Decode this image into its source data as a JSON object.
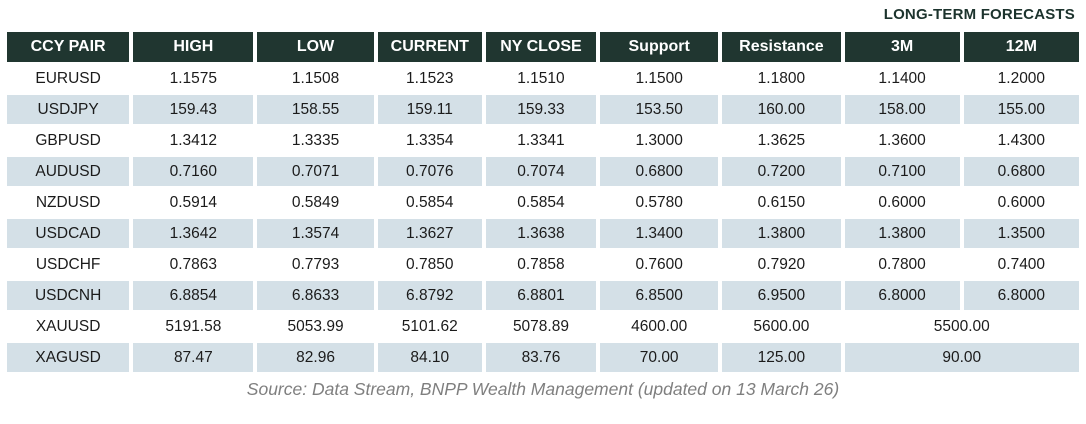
{
  "header": {
    "long_term_label": "LONG-TERM FORECASTS"
  },
  "table": {
    "columns": [
      "CCY PAIR",
      "HIGH",
      "LOW",
      "CURRENT",
      "NY CLOSE",
      "Support",
      "Resistance",
      "3M",
      "12M"
    ],
    "rows": [
      {
        "pair": "EURUSD",
        "values": [
          "1.1575",
          "1.1508",
          "1.1523",
          "1.1510",
          "1.1500",
          "1.1800"
        ],
        "forecast_3m": "1.1400",
        "forecast_12m": "1.2000"
      },
      {
        "pair": "USDJPY",
        "values": [
          "159.43",
          "158.55",
          "159.11",
          "159.33",
          "153.50",
          "160.00"
        ],
        "forecast_3m": "158.00",
        "forecast_12m": "155.00"
      },
      {
        "pair": "GBPUSD",
        "values": [
          "1.3412",
          "1.3335",
          "1.3354",
          "1.3341",
          "1.3000",
          "1.3625"
        ],
        "forecast_3m": "1.3600",
        "forecast_12m": "1.4300"
      },
      {
        "pair": "AUDUSD",
        "values": [
          "0.7160",
          "0.7071",
          "0.7076",
          "0.7074",
          "0.6800",
          "0.7200"
        ],
        "forecast_3m": "0.7100",
        "forecast_12m": "0.6800"
      },
      {
        "pair": "NZDUSD",
        "values": [
          "0.5914",
          "0.5849",
          "0.5854",
          "0.5854",
          "0.5780",
          "0.6150"
        ],
        "forecast_3m": "0.6000",
        "forecast_12m": "0.6000"
      },
      {
        "pair": "USDCAD",
        "values": [
          "1.3642",
          "1.3574",
          "1.3627",
          "1.3638",
          "1.3400",
          "1.3800"
        ],
        "forecast_3m": "1.3800",
        "forecast_12m": "1.3500"
      },
      {
        "pair": "USDCHF",
        "values": [
          "0.7863",
          "0.7793",
          "0.7850",
          "0.7858",
          "0.7600",
          "0.7920"
        ],
        "forecast_3m": "0.7800",
        "forecast_12m": "0.7400"
      },
      {
        "pair": "USDCNH",
        "values": [
          "6.8854",
          "6.8633",
          "6.8792",
          "6.8801",
          "6.8500",
          "6.9500"
        ],
        "forecast_3m": "6.8000",
        "forecast_12m": "6.8000"
      },
      {
        "pair": "XAUUSD",
        "values": [
          "5191.58",
          "5053.99",
          "5101.62",
          "5078.89",
          "4600.00",
          "5600.00"
        ],
        "forecast_merged": "5500.00"
      },
      {
        "pair": "XAGUSD",
        "values": [
          "87.47",
          "82.96",
          "84.10",
          "83.76",
          "70.00",
          "125.00"
        ],
        "forecast_merged": "90.00"
      }
    ]
  },
  "footer": {
    "source": "Source: Data Stream, BNPP Wealth Management (updated on 13 March 26)"
  },
  "colors": {
    "header_bg": "#203630",
    "header_text": "#ffffff",
    "row_alt_bg": "#d4e0e7",
    "body_text": "#1b1b1b",
    "label_text": "#1c332d",
    "source_text": "#7f7f7f"
  }
}
